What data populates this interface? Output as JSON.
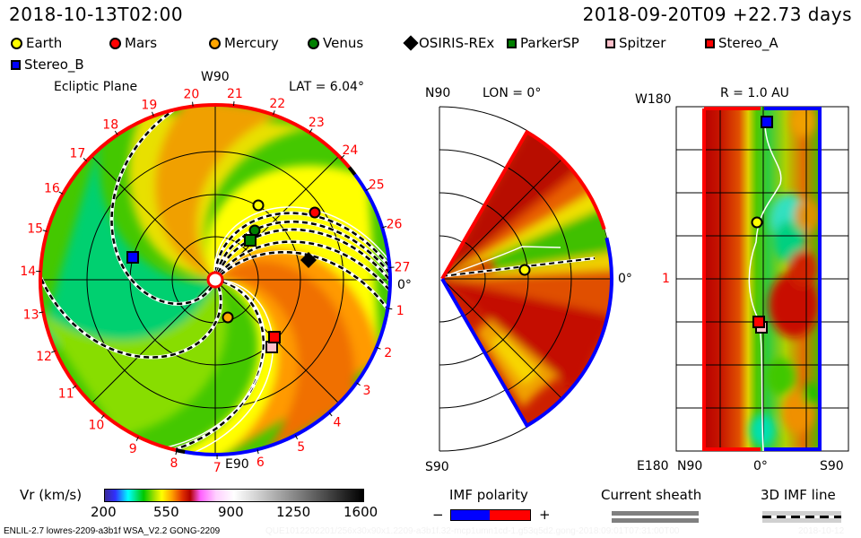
{
  "header": {
    "sim_time": "2018-10-13T02:00",
    "ref_time": "2018-09-20T09 +22.73 days"
  },
  "legend": [
    {
      "name": "Earth",
      "shape": "circle",
      "color": "#ffff00"
    },
    {
      "name": "Mars",
      "shape": "circle",
      "color": "#ff0000"
    },
    {
      "name": "Mercury",
      "shape": "circle",
      "color": "#ffa500"
    },
    {
      "name": "Venus",
      "shape": "circle",
      "color": "#008000"
    },
    {
      "name": "OSIRIS-REx",
      "shape": "diamond",
      "color": "#000000"
    },
    {
      "name": "ParkerSP",
      "shape": "square",
      "color": "#008000"
    },
    {
      "name": "Spitzer",
      "shape": "square",
      "color": "#ffc0cb"
    },
    {
      "name": "Stereo_A",
      "shape": "square",
      "color": "#ff0000"
    },
    {
      "name": "Stereo_B",
      "shape": "square",
      "color": "#0000ff"
    }
  ],
  "ecliptic": {
    "title": "Ecliptic Plane",
    "top_label": "W90",
    "bottom_label": "E90",
    "right_label": "0°",
    "lat": "LAT = 6.04°",
    "carrington_labels": [
      "1",
      "2",
      "3",
      "4",
      "5",
      "6",
      "7",
      "8",
      "9",
      "10",
      "11",
      "12",
      "13",
      "14",
      "15",
      "16",
      "17",
      "18",
      "19",
      "20",
      "21",
      "22",
      "23",
      "24",
      "25",
      "26",
      "27"
    ]
  },
  "meridional": {
    "title": "LON = 0°",
    "top_label": "N90",
    "bottom_label": "S90",
    "right_label": "0°"
  },
  "radial": {
    "title": "R = 1.0 AU",
    "top_label": "W180",
    "bottom_label": "E180",
    "left_tick": "1",
    "x_labels": [
      "N90",
      "0°",
      "S90"
    ]
  },
  "colorbar": {
    "label": "Vr (km/s)",
    "ticks": [
      "200",
      "550",
      "900",
      "1250",
      "1600"
    ],
    "min": 200,
    "max": 1600
  },
  "imf_polarity": {
    "label": "IMF polarity",
    "minus": "−",
    "plus": "+",
    "neg_color": "#0000ff",
    "pos_color": "#ff0000"
  },
  "current_sheath": {
    "label": "Current sheath"
  },
  "imf_line": {
    "label": "3D IMF line"
  },
  "footer": {
    "model": "ENLIL-2.7 lowres-2209-a3b1f WSA_V2.2 GONG-2209",
    "run_id": "QUE1012202201/256x30x90x1.2209-a3b1f.32-mcp1umn1cd-1.g53q5d2.gong-2018:09:01T07:31:00T00",
    "run_date": "2018-10-12"
  },
  "chart_data": {
    "type": "heatmap",
    "quantity": "Vr (km/s)",
    "value_range": [
      200,
      1600
    ],
    "panels": [
      "Ecliptic Plane",
      "LON = 0°",
      "R = 1.0 AU"
    ],
    "bodies": [
      "Earth",
      "Mars",
      "Mercury",
      "Venus",
      "OSIRIS-REx",
      "ParkerSP",
      "Spitzer",
      "Stereo_A",
      "Stereo_B"
    ]
  }
}
